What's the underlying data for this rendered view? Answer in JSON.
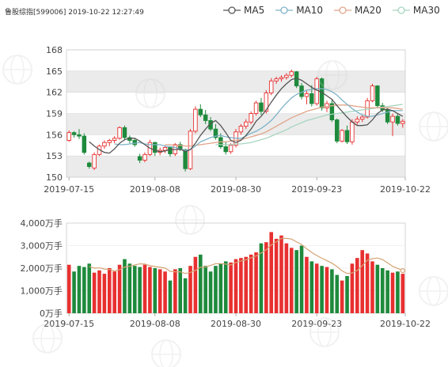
{
  "header": {
    "title": "鲁股综指[599006] 2019-10-22 12:27:49"
  },
  "legend": [
    {
      "label": "MA5",
      "color": "#555555"
    },
    {
      "label": "MA10",
      "color": "#7fb3c8"
    },
    {
      "label": "MA20",
      "color": "#e0a58a"
    },
    {
      "label": "MA30",
      "color": "#a8d5c0"
    }
  ],
  "colors": {
    "up": "#e83030",
    "down": "#1e8a3c",
    "grid_band": "#ebebeb",
    "watermark": "#cfcfcf"
  },
  "chart_data": [
    {
      "type": "candlestick",
      "title": "",
      "ylim": [
        150,
        168
      ],
      "yticks": [
        150,
        153,
        156,
        159,
        162,
        165,
        168
      ],
      "xtick_labels": [
        "2019-07-15",
        "2019-08-08",
        "2019-08-30",
        "2019-09-23",
        "2019-10-22"
      ],
      "xtick_index": [
        0,
        17,
        33,
        49,
        69
      ],
      "ohlc": [
        [
          155.2,
          156.6,
          155.0,
          156.3
        ],
        [
          156.3,
          156.5,
          155.6,
          156.0
        ],
        [
          156.0,
          156.8,
          155.4,
          155.8
        ],
        [
          155.8,
          156.2,
          153.2,
          153.5
        ],
        [
          152.0,
          152.2,
          151.2,
          151.5
        ],
        [
          151.3,
          153.5,
          151.0,
          153.2
        ],
        [
          153.2,
          154.6,
          153.0,
          154.4
        ],
        [
          154.4,
          155.2,
          154.0,
          154.9
        ],
        [
          154.9,
          155.4,
          154.4,
          155.2
        ],
        [
          155.2,
          155.8,
          154.8,
          155.5
        ],
        [
          155.5,
          157.2,
          155.3,
          157.0
        ],
        [
          157.0,
          157.3,
          155.3,
          155.6
        ],
        [
          155.6,
          155.9,
          154.8,
          155.2
        ],
        [
          155.2,
          155.5,
          154.3,
          154.6
        ],
        [
          152.9,
          153.3,
          152.0,
          152.4
        ],
        [
          152.4,
          153.5,
          152.1,
          153.2
        ],
        [
          153.2,
          155.3,
          153.0,
          154.9
        ],
        [
          154.9,
          155.0,
          153.0,
          153.5
        ],
        [
          153.5,
          154.2,
          153.1,
          153.8
        ],
        [
          153.8,
          154.5,
          153.4,
          154.2
        ],
        [
          154.2,
          154.4,
          152.9,
          153.3
        ],
        [
          153.3,
          154.8,
          153.0,
          154.6
        ],
        [
          154.6,
          155.0,
          153.7,
          153.9
        ],
        [
          153.9,
          154.0,
          150.8,
          151.2
        ],
        [
          151.2,
          156.8,
          151.0,
          156.5
        ],
        [
          156.5,
          160.0,
          156.2,
          159.6
        ],
        [
          159.6,
          160.3,
          158.5,
          158.8
        ],
        [
          158.8,
          159.5,
          157.5,
          158.0
        ],
        [
          158.0,
          158.5,
          156.5,
          156.8
        ],
        [
          156.8,
          157.5,
          155.3,
          155.6
        ],
        [
          155.6,
          156.2,
          154.0,
          154.3
        ],
        [
          154.3,
          155.0,
          153.2,
          153.6
        ],
        [
          153.6,
          154.8,
          153.3,
          154.5
        ],
        [
          154.5,
          156.8,
          154.2,
          156.4
        ],
        [
          156.4,
          157.5,
          156.0,
          157.2
        ],
        [
          157.2,
          158.2,
          156.8,
          157.8
        ],
        [
          157.8,
          159.3,
          157.5,
          159.0
        ],
        [
          159.0,
          160.8,
          158.7,
          160.5
        ],
        [
          160.5,
          161.2,
          158.8,
          159.3
        ],
        [
          159.3,
          162.3,
          159.0,
          161.9
        ],
        [
          161.9,
          164.0,
          161.6,
          163.6
        ],
        [
          163.6,
          164.2,
          163.2,
          163.9
        ],
        [
          163.9,
          164.4,
          163.5,
          164.1
        ],
        [
          164.1,
          164.7,
          163.8,
          164.4
        ],
        [
          164.4,
          165.2,
          164.1,
          164.9
        ],
        [
          164.9,
          165.0,
          162.6,
          162.9
        ],
        [
          162.9,
          163.3,
          161.0,
          161.4
        ],
        [
          161.4,
          162.2,
          160.3,
          161.8
        ],
        [
          161.8,
          163.0,
          160.0,
          160.4
        ],
        [
          160.4,
          164.2,
          160.1,
          163.9
        ],
        [
          163.9,
          164.1,
          159.4,
          159.8
        ],
        [
          159.8,
          160.8,
          159.2,
          160.4
        ],
        [
          160.4,
          160.9,
          157.8,
          158.1
        ],
        [
          158.1,
          158.3,
          154.8,
          155.1
        ],
        [
          155.1,
          156.8,
          154.9,
          156.6
        ],
        [
          156.6,
          157.3,
          154.7,
          155.0
        ],
        [
          155.0,
          158.2,
          154.6,
          157.8
        ],
        [
          157.8,
          158.6,
          157.4,
          158.2
        ],
        [
          158.2,
          158.8,
          157.8,
          158.5
        ],
        [
          158.5,
          161.2,
          158.3,
          160.8
        ],
        [
          160.8,
          163.2,
          160.6,
          162.9
        ],
        [
          162.9,
          163.0,
          159.8,
          160.1
        ],
        [
          160.1,
          160.5,
          159.2,
          159.5
        ],
        [
          159.5,
          159.8,
          157.5,
          157.8
        ],
        [
          157.8,
          159.0,
          155.8,
          158.6
        ],
        [
          158.6,
          158.9,
          157.3,
          157.6
        ],
        [
          157.6,
          158.2,
          157.0,
          157.9
        ]
      ],
      "ma5": [
        null,
        null,
        null,
        null,
        155.0,
        154.4,
        153.9,
        153.5,
        153.4,
        154.0,
        154.8,
        155.3,
        155.5,
        155.5,
        155.1,
        154.6,
        154.1,
        153.8,
        153.6,
        153.7,
        153.9,
        153.9,
        154.0,
        153.6,
        153.9,
        154.8,
        155.9,
        156.8,
        157.6,
        158.0,
        157.3,
        156.3,
        155.2,
        154.9,
        155.2,
        155.9,
        156.8,
        157.9,
        158.6,
        159.5,
        160.6,
        161.6,
        162.5,
        163.2,
        163.8,
        164.0,
        163.7,
        163.2,
        162.7,
        162.3,
        162.0,
        161.5,
        161.0,
        160.1,
        159.3,
        158.5,
        157.8,
        157.3,
        157.3,
        157.4,
        158.1,
        159.0,
        159.5,
        159.6,
        159.4,
        159.0,
        158.6
      ],
      "ma10": [
        null,
        null,
        null,
        null,
        null,
        null,
        null,
        null,
        null,
        154.7,
        154.6,
        154.6,
        154.7,
        154.8,
        154.9,
        154.7,
        154.6,
        154.6,
        154.6,
        154.4,
        154.3,
        154.2,
        154.0,
        153.8,
        153.9,
        154.4,
        155.0,
        155.3,
        155.6,
        155.8,
        155.9,
        155.7,
        155.6,
        155.5,
        155.5,
        155.8,
        156.2,
        156.5,
        156.9,
        157.4,
        158.0,
        158.8,
        159.7,
        160.5,
        161.2,
        161.7,
        162.0,
        162.3,
        162.4,
        162.5,
        162.5,
        162.4,
        162.1,
        161.6,
        160.9,
        160.3,
        159.7,
        159.2,
        158.8,
        158.6,
        158.6,
        158.8,
        159.0,
        159.2,
        159.4,
        159.4,
        159.4
      ],
      "ma20": [
        null,
        null,
        null,
        null,
        null,
        null,
        null,
        null,
        null,
        null,
        null,
        null,
        null,
        null,
        null,
        null,
        null,
        null,
        null,
        154.6,
        154.6,
        154.5,
        154.5,
        154.4,
        154.4,
        154.5,
        154.6,
        154.7,
        154.8,
        154.9,
        155.0,
        155.0,
        155.1,
        155.2,
        155.3,
        155.5,
        155.7,
        155.9,
        156.1,
        156.4,
        156.8,
        157.2,
        157.6,
        158.0,
        158.4,
        158.7,
        159.0,
        159.3,
        159.5,
        159.7,
        159.9,
        160.0,
        160.1,
        160.2,
        160.2,
        160.2,
        160.1,
        160.0,
        159.9,
        159.8,
        159.8,
        159.8,
        159.8,
        159.8,
        159.8,
        159.7,
        159.6
      ],
      "ma30": [
        null,
        null,
        null,
        null,
        null,
        null,
        null,
        null,
        null,
        null,
        null,
        null,
        null,
        null,
        null,
        null,
        null,
        null,
        null,
        null,
        null,
        null,
        null,
        null,
        null,
        null,
        null,
        null,
        null,
        154.6,
        154.6,
        154.6,
        154.6,
        154.7,
        154.7,
        154.8,
        154.9,
        155.1,
        155.3,
        155.5,
        155.8,
        156.1,
        156.4,
        156.7,
        157.1,
        157.4,
        157.7,
        158.0,
        158.2,
        158.4,
        158.6,
        158.8,
        158.9,
        159.0,
        159.1,
        159.2,
        159.3,
        159.4,
        159.5,
        159.6,
        159.7,
        159.8,
        159.9,
        160.0,
        160.1,
        160.2,
        160.3
      ]
    },
    {
      "type": "bar",
      "title": "",
      "ylim": [
        0,
        4000
      ],
      "unit": "万手",
      "ytick_labels": [
        "0万手",
        "1,000万手",
        "2,000万手",
        "3,000万手",
        "4,000万手"
      ],
      "yticks": [
        0,
        1000,
        2000,
        3000,
        4000
      ],
      "xtick_labels": [
        "2019-07-15",
        "2019-08-08",
        "2019-08-30",
        "2019-09-23",
        "2019-10-22"
      ],
      "xtick_index": [
        0,
        17,
        33,
        49,
        69
      ],
      "volume": [
        2150,
        1850,
        2100,
        2050,
        2200,
        1800,
        1900,
        1750,
        2000,
        1850,
        2150,
        2400,
        2200,
        2100,
        2050,
        2150,
        2050,
        2000,
        1950,
        1850,
        1450,
        1950,
        2000,
        1550,
        2100,
        2500,
        2600,
        2100,
        1850,
        2100,
        2200,
        2300,
        2250,
        2400,
        2450,
        2500,
        2600,
        2700,
        3100,
        3150,
        3600,
        3300,
        3450,
        3100,
        2900,
        2800,
        3000,
        2500,
        2300,
        2200,
        2100,
        2050,
        1950,
        1700,
        1450,
        1650,
        2200,
        2450,
        2800,
        2650,
        2300,
        2150,
        2000,
        1900,
        1800,
        1850,
        1750
      ],
      "vol_ma": [
        null,
        null,
        null,
        null,
        2070,
        2000,
        2010,
        1960,
        1940,
        1870,
        1930,
        2050,
        2080,
        2140,
        2190,
        2180,
        2110,
        2070,
        2040,
        2000,
        1860,
        1840,
        1840,
        1760,
        1810,
        1900,
        2040,
        2050,
        2120,
        2200,
        2200,
        2180,
        2140,
        2250,
        2320,
        2370,
        2460,
        2540,
        2670,
        2810,
        3030,
        3170,
        3320,
        3320,
        3290,
        3160,
        3050,
        2860,
        2700,
        2560,
        2440,
        2330,
        2220,
        2070,
        1880,
        1760,
        1790,
        1890,
        2110,
        2350,
        2420,
        2450,
        2380,
        2240,
        2080,
        1990,
        1890
      ]
    }
  ]
}
